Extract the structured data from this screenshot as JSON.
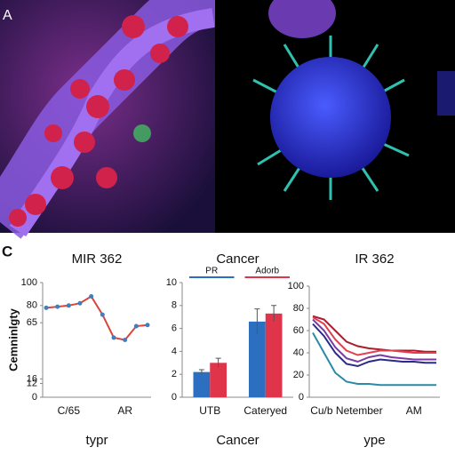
{
  "panel_labels": [
    "A",
    "C"
  ],
  "chart_data": [
    {
      "type": "line",
      "title": "MIR 362",
      "y_label": "Cemninlgty",
      "x_label": "typr",
      "categories": [
        null,
        null,
        "C/65",
        null,
        null,
        null,
        null,
        "AR",
        null,
        null
      ],
      "series": [
        {
          "color": "#d9453a",
          "marker_color": "#3f7fc0",
          "values": [
            78,
            79,
            80,
            82,
            88,
            72,
            52,
            50,
            62,
            63
          ]
        }
      ],
      "ylim": [
        0,
        100
      ],
      "yticks": [
        0,
        12,
        16,
        65,
        80,
        100
      ],
      "grid": false
    },
    {
      "type": "bar",
      "title": "Cancer",
      "x_label": "Cancer",
      "categories": [
        "UTB",
        "Cateryed"
      ],
      "series": [
        {
          "name": "PR",
          "color": "#2c6fc0",
          "values": [
            2.2,
            6.6
          ],
          "errors": [
            0.2,
            1.1
          ]
        },
        {
          "name": "Adorb",
          "color": "#e0344a",
          "values": [
            3.0,
            7.3
          ],
          "errors": [
            0.4,
            0.7
          ]
        }
      ],
      "ylim": [
        0,
        10
      ],
      "yticks": [
        0,
        2,
        4,
        6,
        8,
        10
      ],
      "legend": "top",
      "grid": false
    },
    {
      "type": "line",
      "title": "IR 362",
      "x_label": "ype",
      "categories": [
        null,
        null,
        null,
        "Cu/b Netember",
        null,
        null,
        null,
        null,
        null,
        "AM",
        null,
        null
      ],
      "series": [
        {
          "color": "#a81e2e",
          "values": [
            73,
            70,
            60,
            50,
            46,
            44,
            43,
            42,
            42,
            42,
            41,
            41
          ]
        },
        {
          "color": "#e04050",
          "values": [
            72,
            66,
            52,
            42,
            38,
            40,
            42,
            42,
            41,
            40,
            40,
            40
          ]
        },
        {
          "color": "#7a3aa0",
          "values": [
            70,
            60,
            45,
            35,
            32,
            36,
            38,
            36,
            35,
            34,
            34,
            34
          ]
        },
        {
          "color": "#2a2a8a",
          "values": [
            66,
            55,
            40,
            30,
            28,
            32,
            34,
            33,
            32,
            32,
            31,
            31
          ]
        },
        {
          "color": "#2a8aaa",
          "values": [
            58,
            40,
            22,
            14,
            12,
            12,
            11,
            11,
            11,
            11,
            11,
            11
          ]
        }
      ],
      "ylim": [
        0,
        100
      ],
      "yticks": [
        0,
        20,
        40,
        60,
        80,
        100
      ],
      "grid": false
    }
  ]
}
